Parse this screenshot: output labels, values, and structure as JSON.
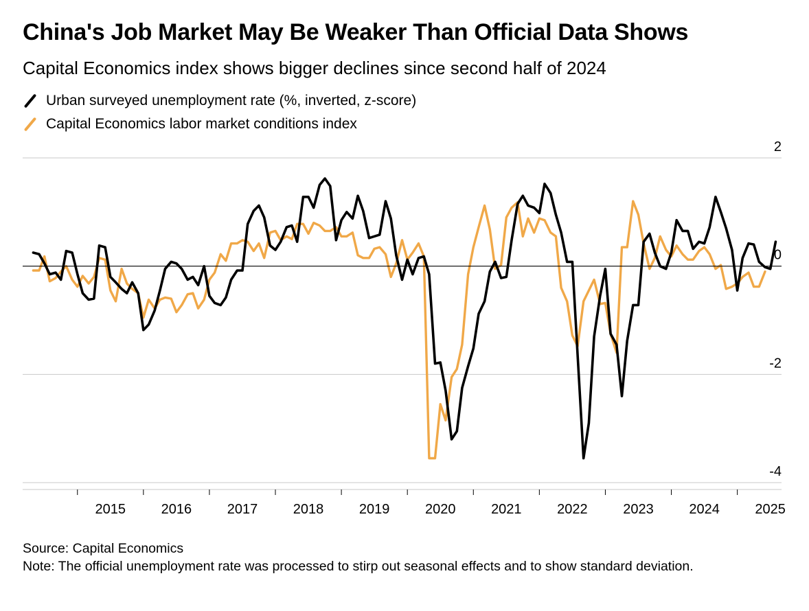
{
  "title": "China's Job Market May Be Weaker Than Official Data Shows",
  "subtitle": "Capital Economics index shows bigger declines since second half of 2024",
  "source": "Source: Capital Economics",
  "note": "Note: The official unemployment rate was processed to stirp out seasonal effects and to show standard deviation.",
  "chart_data": {
    "type": "line",
    "title": "China's Job Market May Be Weaker Than Official Data Shows",
    "subtitle": "Capital Economics index shows bigger declines since second half of 2024",
    "xlabel": "",
    "ylabel": "",
    "x_ticks": [
      "2015",
      "2016",
      "2017",
      "2018",
      "2019",
      "2020",
      "2021",
      "2022",
      "2023",
      "2024",
      "2025"
    ],
    "y_ticks": [
      "2",
      "0",
      "-2",
      "-4"
    ],
    "x_range": [
      2014.17,
      2025.67
    ],
    "ylim": [
      -4.2,
      2.0
    ],
    "gridlines": [
      2,
      -2,
      -4
    ],
    "zero_line": 0,
    "legend_position": "top-left",
    "series": [
      {
        "name": "Urban surveyed unemployment rate (%, inverted, z-score)",
        "color": "#000000",
        "points": [
          [
            2014.33,
            0.25
          ],
          [
            2014.42,
            0.22
          ],
          [
            2014.5,
            0.05
          ],
          [
            2014.58,
            -0.15
          ],
          [
            2014.67,
            -0.12
          ],
          [
            2014.75,
            -0.25
          ],
          [
            2014.83,
            0.28
          ],
          [
            2014.92,
            0.25
          ],
          [
            2015.0,
            -0.15
          ],
          [
            2015.08,
            -0.5
          ],
          [
            2015.17,
            -0.62
          ],
          [
            2015.25,
            -0.6
          ],
          [
            2015.33,
            0.38
          ],
          [
            2015.42,
            0.35
          ],
          [
            2015.5,
            -0.2
          ],
          [
            2015.58,
            -0.3
          ],
          [
            2015.67,
            -0.42
          ],
          [
            2015.75,
            -0.5
          ],
          [
            2015.83,
            -0.3
          ],
          [
            2015.92,
            -0.5
          ],
          [
            2016.0,
            -1.18
          ],
          [
            2016.08,
            -1.08
          ],
          [
            2016.17,
            -0.82
          ],
          [
            2016.25,
            -0.45
          ],
          [
            2016.33,
            -0.05
          ],
          [
            2016.42,
            0.08
          ],
          [
            2016.5,
            0.05
          ],
          [
            2016.58,
            -0.05
          ],
          [
            2016.67,
            -0.25
          ],
          [
            2016.75,
            -0.2
          ],
          [
            2016.83,
            -0.35
          ],
          [
            2016.92,
            0.0
          ],
          [
            2017.0,
            -0.55
          ],
          [
            2017.08,
            -0.68
          ],
          [
            2017.17,
            -0.72
          ],
          [
            2017.25,
            -0.58
          ],
          [
            2017.33,
            -0.25
          ],
          [
            2017.42,
            -0.08
          ],
          [
            2017.5,
            -0.08
          ],
          [
            2017.58,
            0.78
          ],
          [
            2017.67,
            1.02
          ],
          [
            2017.75,
            1.12
          ],
          [
            2017.83,
            0.9
          ],
          [
            2017.92,
            0.38
          ],
          [
            2018.0,
            0.3
          ],
          [
            2018.08,
            0.45
          ],
          [
            2018.17,
            0.72
          ],
          [
            2018.25,
            0.75
          ],
          [
            2018.33,
            0.45
          ],
          [
            2018.42,
            1.28
          ],
          [
            2018.5,
            1.28
          ],
          [
            2018.58,
            1.08
          ],
          [
            2018.67,
            1.5
          ],
          [
            2018.75,
            1.62
          ],
          [
            2018.83,
            1.48
          ],
          [
            2018.92,
            0.48
          ],
          [
            2019.0,
            0.85
          ],
          [
            2019.08,
            1.0
          ],
          [
            2019.17,
            0.88
          ],
          [
            2019.25,
            1.3
          ],
          [
            2019.33,
            1.02
          ],
          [
            2019.42,
            0.52
          ],
          [
            2019.5,
            0.55
          ],
          [
            2019.58,
            0.58
          ],
          [
            2019.67,
            1.2
          ],
          [
            2019.75,
            0.88
          ],
          [
            2019.83,
            0.2
          ],
          [
            2019.92,
            -0.25
          ],
          [
            2020.0,
            0.12
          ],
          [
            2020.08,
            -0.15
          ],
          [
            2020.17,
            0.15
          ],
          [
            2020.25,
            0.18
          ],
          [
            2020.33,
            -0.15
          ],
          [
            2020.42,
            -1.8
          ],
          [
            2020.5,
            -1.78
          ],
          [
            2020.58,
            -2.3
          ],
          [
            2020.67,
            -3.2
          ],
          [
            2020.75,
            -3.05
          ],
          [
            2020.83,
            -2.25
          ],
          [
            2020.92,
            -1.85
          ],
          [
            2021.0,
            -1.52
          ],
          [
            2021.08,
            -0.88
          ],
          [
            2021.17,
            -0.65
          ],
          [
            2021.25,
            -0.1
          ],
          [
            2021.33,
            0.08
          ],
          [
            2021.42,
            -0.22
          ],
          [
            2021.5,
            -0.2
          ],
          [
            2021.58,
            0.48
          ],
          [
            2021.67,
            1.15
          ],
          [
            2021.75,
            1.3
          ],
          [
            2021.83,
            1.12
          ],
          [
            2021.92,
            1.08
          ],
          [
            2022.0,
            0.98
          ],
          [
            2022.08,
            1.52
          ],
          [
            2022.17,
            1.35
          ],
          [
            2022.25,
            0.95
          ],
          [
            2022.33,
            0.62
          ],
          [
            2022.42,
            0.08
          ],
          [
            2022.5,
            0.08
          ],
          [
            2022.58,
            -1.65
          ],
          [
            2022.67,
            -3.55
          ],
          [
            2022.75,
            -2.9
          ],
          [
            2022.83,
            -1.3
          ],
          [
            2022.92,
            -0.55
          ],
          [
            2023.0,
            -0.05
          ],
          [
            2023.08,
            -1.25
          ],
          [
            2023.17,
            -1.45
          ],
          [
            2023.25,
            -2.4
          ],
          [
            2023.33,
            -1.38
          ],
          [
            2023.42,
            -0.72
          ],
          [
            2023.5,
            -0.72
          ],
          [
            2023.58,
            0.45
          ],
          [
            2023.67,
            0.6
          ],
          [
            2023.75,
            0.25
          ],
          [
            2023.83,
            0.0
          ],
          [
            2023.92,
            -0.05
          ],
          [
            2024.0,
            0.25
          ],
          [
            2024.08,
            0.85
          ],
          [
            2024.17,
            0.65
          ],
          [
            2024.25,
            0.65
          ],
          [
            2024.33,
            0.32
          ],
          [
            2024.42,
            0.45
          ],
          [
            2024.5,
            0.42
          ],
          [
            2024.58,
            0.72
          ],
          [
            2024.67,
            1.28
          ],
          [
            2024.75,
            1.0
          ],
          [
            2024.83,
            0.7
          ],
          [
            2024.92,
            0.3
          ],
          [
            2025.0,
            -0.45
          ],
          [
            2025.08,
            0.15
          ],
          [
            2025.17,
            0.42
          ],
          [
            2025.25,
            0.4
          ],
          [
            2025.33,
            0.08
          ],
          [
            2025.42,
            -0.02
          ],
          [
            2025.5,
            -0.05
          ],
          [
            2025.58,
            0.45
          ]
        ]
      },
      {
        "name": "Capital Economics labor market conditions index",
        "color": "#f0a848",
        "points": [
          [
            2014.33,
            -0.08
          ],
          [
            2014.42,
            -0.08
          ],
          [
            2014.5,
            0.18
          ],
          [
            2014.58,
            -0.28
          ],
          [
            2014.67,
            -0.22
          ],
          [
            2014.75,
            -0.1
          ],
          [
            2014.83,
            0.0
          ],
          [
            2014.92,
            -0.25
          ],
          [
            2015.0,
            -0.38
          ],
          [
            2015.08,
            -0.18
          ],
          [
            2015.17,
            -0.32
          ],
          [
            2015.25,
            -0.2
          ],
          [
            2015.33,
            0.15
          ],
          [
            2015.42,
            0.12
          ],
          [
            2015.5,
            -0.45
          ],
          [
            2015.58,
            -0.65
          ],
          [
            2015.67,
            -0.05
          ],
          [
            2015.75,
            -0.32
          ],
          [
            2015.83,
            -0.42
          ],
          [
            2015.92,
            -0.5
          ],
          [
            2016.0,
            -0.95
          ],
          [
            2016.08,
            -0.62
          ],
          [
            2016.17,
            -0.78
          ],
          [
            2016.25,
            -0.62
          ],
          [
            2016.33,
            -0.58
          ],
          [
            2016.42,
            -0.6
          ],
          [
            2016.5,
            -0.85
          ],
          [
            2016.58,
            -0.72
          ],
          [
            2016.67,
            -0.52
          ],
          [
            2016.75,
            -0.5
          ],
          [
            2016.83,
            -0.78
          ],
          [
            2016.92,
            -0.62
          ],
          [
            2017.0,
            -0.25
          ],
          [
            2017.08,
            -0.12
          ],
          [
            2017.17,
            0.22
          ],
          [
            2017.25,
            0.1
          ],
          [
            2017.33,
            0.42
          ],
          [
            2017.42,
            0.42
          ],
          [
            2017.5,
            0.48
          ],
          [
            2017.58,
            0.45
          ],
          [
            2017.67,
            0.28
          ],
          [
            2017.75,
            0.42
          ],
          [
            2017.83,
            0.15
          ],
          [
            2017.92,
            0.62
          ],
          [
            2018.0,
            0.65
          ],
          [
            2018.08,
            0.48
          ],
          [
            2018.17,
            0.55
          ],
          [
            2018.25,
            0.5
          ],
          [
            2018.33,
            0.78
          ],
          [
            2018.42,
            0.78
          ],
          [
            2018.5,
            0.6
          ],
          [
            2018.58,
            0.8
          ],
          [
            2018.67,
            0.75
          ],
          [
            2018.75,
            0.65
          ],
          [
            2018.83,
            0.65
          ],
          [
            2018.92,
            0.72
          ],
          [
            2019.0,
            0.55
          ],
          [
            2019.08,
            0.55
          ],
          [
            2019.17,
            0.62
          ],
          [
            2019.25,
            0.2
          ],
          [
            2019.33,
            0.15
          ],
          [
            2019.42,
            0.15
          ],
          [
            2019.5,
            0.32
          ],
          [
            2019.58,
            0.35
          ],
          [
            2019.67,
            0.22
          ],
          [
            2019.75,
            -0.2
          ],
          [
            2019.83,
            0.05
          ],
          [
            2019.92,
            0.48
          ],
          [
            2020.0,
            0.12
          ],
          [
            2020.08,
            0.25
          ],
          [
            2020.17,
            0.42
          ],
          [
            2020.25,
            0.18
          ],
          [
            2020.33,
            -3.55
          ],
          [
            2020.42,
            -3.55
          ],
          [
            2020.5,
            -2.55
          ],
          [
            2020.58,
            -2.85
          ],
          [
            2020.67,
            -2.05
          ],
          [
            2020.75,
            -1.9
          ],
          [
            2020.83,
            -1.45
          ],
          [
            2020.92,
            -0.15
          ],
          [
            2021.0,
            0.35
          ],
          [
            2021.08,
            0.72
          ],
          [
            2021.17,
            1.12
          ],
          [
            2021.25,
            0.68
          ],
          [
            2021.33,
            -0.05
          ],
          [
            2021.42,
            0.02
          ],
          [
            2021.5,
            0.9
          ],
          [
            2021.58,
            1.08
          ],
          [
            2021.67,
            1.18
          ],
          [
            2021.75,
            0.55
          ],
          [
            2021.83,
            0.88
          ],
          [
            2021.92,
            0.62
          ],
          [
            2022.0,
            0.88
          ],
          [
            2022.08,
            0.85
          ],
          [
            2022.17,
            0.62
          ],
          [
            2022.25,
            0.55
          ],
          [
            2022.33,
            -0.4
          ],
          [
            2022.42,
            -0.65
          ],
          [
            2022.5,
            -1.28
          ],
          [
            2022.58,
            -1.48
          ],
          [
            2022.67,
            -0.65
          ],
          [
            2022.75,
            -0.45
          ],
          [
            2022.83,
            -0.25
          ],
          [
            2022.92,
            -0.7
          ],
          [
            2023.0,
            -0.68
          ],
          [
            2023.08,
            -1.25
          ],
          [
            2023.17,
            -1.6
          ],
          [
            2023.25,
            0.35
          ],
          [
            2023.33,
            0.35
          ],
          [
            2023.42,
            1.2
          ],
          [
            2023.5,
            0.95
          ],
          [
            2023.58,
            0.42
          ],
          [
            2023.67,
            -0.05
          ],
          [
            2023.75,
            0.15
          ],
          [
            2023.83,
            0.55
          ],
          [
            2023.92,
            0.3
          ],
          [
            2024.0,
            0.18
          ],
          [
            2024.08,
            0.38
          ],
          [
            2024.17,
            0.22
          ],
          [
            2024.25,
            0.12
          ],
          [
            2024.33,
            0.12
          ],
          [
            2024.42,
            0.28
          ],
          [
            2024.5,
            0.35
          ],
          [
            2024.58,
            0.22
          ],
          [
            2024.67,
            -0.05
          ],
          [
            2024.75,
            0.02
          ],
          [
            2024.83,
            -0.42
          ],
          [
            2024.92,
            -0.38
          ],
          [
            2025.0,
            -0.32
          ],
          [
            2025.08,
            -0.2
          ],
          [
            2025.17,
            -0.12
          ],
          [
            2025.25,
            -0.38
          ],
          [
            2025.33,
            -0.38
          ],
          [
            2025.42,
            -0.1
          ]
        ]
      }
    ]
  }
}
